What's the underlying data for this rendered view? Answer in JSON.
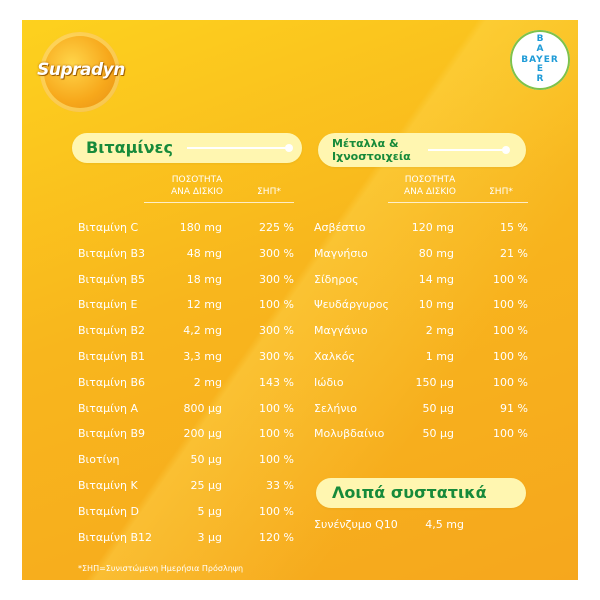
{
  "brand": {
    "logo_text": "Supradyn",
    "bayer_text": "BAYER"
  },
  "vitamins": {
    "section_title": "Βιταμίνες",
    "header_amount_line1": "ΠΟΣΟΤΗΤΑ",
    "header_amount_line2": "ΑΝΑ ΔΙΣΚΙΟ",
    "header_rda": "ΣΗΠ*",
    "rows": [
      {
        "name": "Βιταμίνη C",
        "amount": "180 mg",
        "rda": "225 %"
      },
      {
        "name": "Βιταμίνη B3",
        "amount": "48 mg",
        "rda": "300 %"
      },
      {
        "name": "Βιταμίνη B5",
        "amount": "18 mg",
        "rda": "300 %"
      },
      {
        "name": "Βιταμίνη E",
        "amount": "12 mg",
        "rda": "100 %"
      },
      {
        "name": "Βιταμίνη B2",
        "amount": "4,2 mg",
        "rda": "300 %"
      },
      {
        "name": "Βιταμίνη B1",
        "amount": "3,3 mg",
        "rda": "300 %"
      },
      {
        "name": "Βιταμίνη B6",
        "amount": "2 mg",
        "rda": "143 %"
      },
      {
        "name": "Βιταμίνη A",
        "amount": "800 μg",
        "rda": "100 %"
      },
      {
        "name": "Βιταμίνη B9",
        "amount": "200 μg",
        "rda": "100 %"
      },
      {
        "name": "Βιοτίνη",
        "amount": "50 μg",
        "rda": "100 %"
      },
      {
        "name": "Βιταμίνη K",
        "amount": "25 μg",
        "rda": "33 %"
      },
      {
        "name": "Βιταμίνη D",
        "amount": "5 μg",
        "rda": "100 %"
      },
      {
        "name": "Βιταμίνη B12",
        "amount": "3 μg",
        "rda": "120 %"
      }
    ]
  },
  "minerals": {
    "section_title_line1": "Μέταλλα &",
    "section_title_line2": "Ιχνοστοιχεία",
    "header_amount_line1": "ΠΟΣΟΤΗΤΑ",
    "header_amount_line2": "ΑΝΑ ΔΙΣΚΙΟ",
    "header_rda": "ΣΗΠ*",
    "rows": [
      {
        "name": "Ασβέστιο",
        "amount": "120 mg",
        "rda": "15 %"
      },
      {
        "name": "Μαγνήσιο",
        "amount": "80 mg",
        "rda": "21 %"
      },
      {
        "name": "Σίδηρος",
        "amount": "14 mg",
        "rda": "100 %"
      },
      {
        "name": "Ψευδάργυρος",
        "amount": "10 mg",
        "rda": "100 %"
      },
      {
        "name": "Μαγγάνιο",
        "amount": "2 mg",
        "rda": "100 %"
      },
      {
        "name": "Χαλκός",
        "amount": "1 mg",
        "rda": "100 %"
      },
      {
        "name": "Ιώδιο",
        "amount": "150 μg",
        "rda": "100 %"
      },
      {
        "name": "Σελήνιο",
        "amount": "50 μg",
        "rda": "91 %"
      },
      {
        "name": "Μολυβδαίνιο",
        "amount": "50 μg",
        "rda": "100 %"
      }
    ]
  },
  "other": {
    "section_title": "Λοιπά συστατικά",
    "rows": [
      {
        "name": "Συνένζυμο Q10",
        "amount": "4,5 mg"
      }
    ]
  },
  "footnote": "*ΣΗΠ=Συνιστώμενη Ημερήσια Πρόσληψη",
  "colors": {
    "background": "#f8b61d",
    "pill": "#fff6b0",
    "pill_text": "#178a3a",
    "text": "#ffffff"
  }
}
